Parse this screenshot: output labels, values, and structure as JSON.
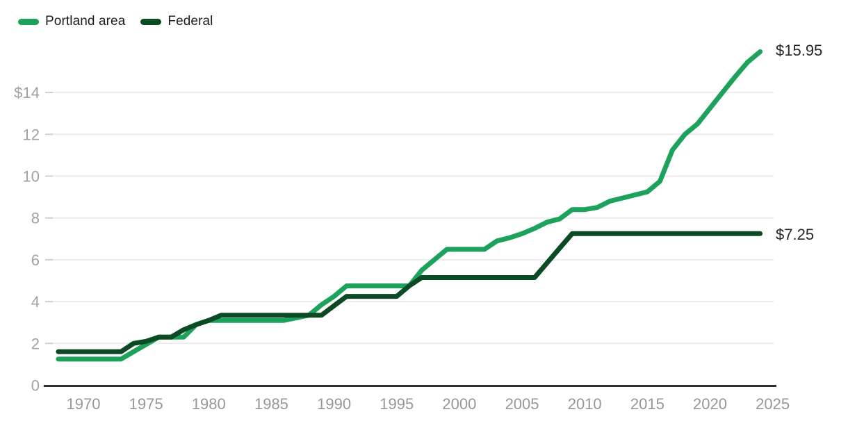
{
  "legend": {
    "items": [
      {
        "label": "Portland area",
        "color": "#1da25b"
      },
      {
        "label": "Federal",
        "color": "#0b4a23"
      }
    ]
  },
  "chart_data": {
    "type": "line",
    "title": "",
    "xlabel": "",
    "ylabel": "",
    "xlim": [
      1968,
      2025
    ],
    "ylim": [
      0,
      16
    ],
    "grid": true,
    "legend_position": "top-left",
    "x_ticks": [
      1970,
      1975,
      1980,
      1985,
      1990,
      1995,
      2000,
      2005,
      2010,
      2015,
      2020,
      2025
    ],
    "y_ticks": [
      {
        "value": 0,
        "label": "0"
      },
      {
        "value": 2,
        "label": "2"
      },
      {
        "value": 4,
        "label": "4"
      },
      {
        "value": 6,
        "label": "6"
      },
      {
        "value": 8,
        "label": "8"
      },
      {
        "value": 10,
        "label": "10"
      },
      {
        "value": 12,
        "label": "12"
      },
      {
        "value": 14,
        "label": "$14"
      }
    ],
    "series": [
      {
        "name": "Portland area",
        "color": "#1da25b",
        "end_label": "$15.95",
        "points": [
          [
            1968,
            1.25
          ],
          [
            1973,
            1.25
          ],
          [
            1974,
            1.6
          ],
          [
            1975,
            1.95
          ],
          [
            1976,
            2.3
          ],
          [
            1978,
            2.3
          ],
          [
            1979,
            2.9
          ],
          [
            1980,
            3.1
          ],
          [
            1986,
            3.1
          ],
          [
            1988,
            3.35
          ],
          [
            1989,
            3.85
          ],
          [
            1990,
            4.25
          ],
          [
            1991,
            4.75
          ],
          [
            1996,
            4.75
          ],
          [
            1997,
            5.5
          ],
          [
            1998,
            6.0
          ],
          [
            1999,
            6.5
          ],
          [
            2002,
            6.5
          ],
          [
            2003,
            6.9
          ],
          [
            2004,
            7.05
          ],
          [
            2005,
            7.25
          ],
          [
            2006,
            7.5
          ],
          [
            2007,
            7.8
          ],
          [
            2008,
            7.95
          ],
          [
            2009,
            8.4
          ],
          [
            2010,
            8.4
          ],
          [
            2011,
            8.5
          ],
          [
            2012,
            8.8
          ],
          [
            2013,
            8.95
          ],
          [
            2014,
            9.1
          ],
          [
            2015,
            9.25
          ],
          [
            2016,
            9.75
          ],
          [
            2017,
            11.25
          ],
          [
            2018,
            12.0
          ],
          [
            2019,
            12.5
          ],
          [
            2020,
            13.25
          ],
          [
            2021,
            14.0
          ],
          [
            2022,
            14.75
          ],
          [
            2023,
            15.45
          ],
          [
            2024,
            15.95
          ]
        ]
      },
      {
        "name": "Federal",
        "color": "#0b4a23",
        "end_label": "$7.25",
        "points": [
          [
            1968,
            1.6
          ],
          [
            1973,
            1.6
          ],
          [
            1974,
            2.0
          ],
          [
            1975,
            2.1
          ],
          [
            1976,
            2.3
          ],
          [
            1977,
            2.3
          ],
          [
            1978,
            2.65
          ],
          [
            1979,
            2.9
          ],
          [
            1980,
            3.1
          ],
          [
            1981,
            3.35
          ],
          [
            1989,
            3.35
          ],
          [
            1990,
            3.8
          ],
          [
            1991,
            4.25
          ],
          [
            1995,
            4.25
          ],
          [
            1996,
            4.75
          ],
          [
            1997,
            5.15
          ],
          [
            2006,
            5.15
          ],
          [
            2007,
            5.85
          ],
          [
            2008,
            6.55
          ],
          [
            2009,
            7.25
          ],
          [
            2024,
            7.25
          ]
        ]
      }
    ]
  },
  "colors": {
    "gridline": "#ececec",
    "tick_stub": "#cfcfcf",
    "axis_line": "#2e2e2e",
    "y_tick_label": "#a1a1a1",
    "x_tick_label": "#979797"
  }
}
